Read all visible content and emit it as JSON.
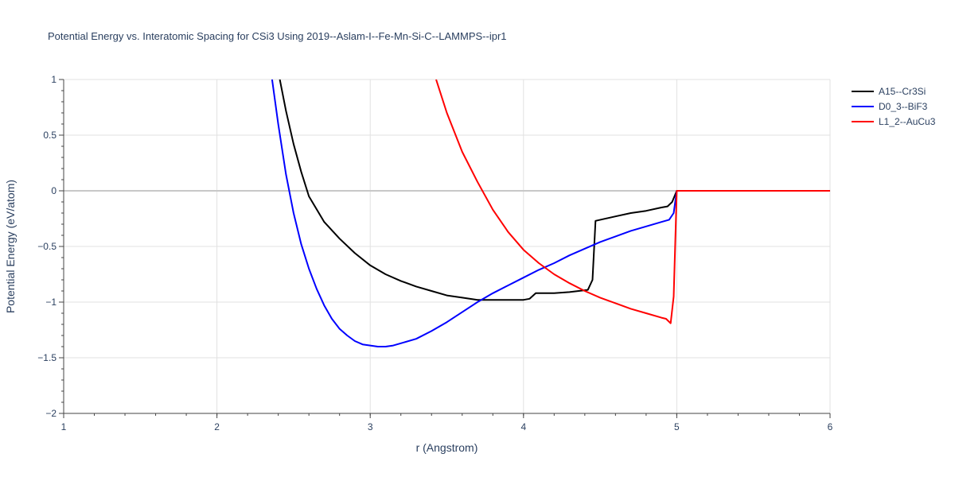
{
  "chart_data": {
    "type": "line",
    "title": "Potential Energy vs. Interatomic Spacing for CSi3 Using 2019--Aslam-I--Fe-Mn-Si-C--LAMMPS--ipr1",
    "xlabel": "r (Angstrom)",
    "ylabel": "Potential Energy (eV/atom)",
    "xlim": [
      1,
      6
    ],
    "ylim": [
      -2,
      1
    ],
    "xticks": [
      "1",
      "2",
      "3",
      "4",
      "5",
      "6"
    ],
    "yticks": [
      "1",
      "0.5",
      "0",
      "−0.5",
      "−1",
      "−1.5",
      "−2"
    ],
    "grid": true,
    "legend_position": "top-right",
    "series": [
      {
        "name": "A15--Cr3Si",
        "color": "#000000",
        "x": [
          2.41,
          2.45,
          2.5,
          2.55,
          2.6,
          2.7,
          2.8,
          2.9,
          3.0,
          3.1,
          3.2,
          3.3,
          3.4,
          3.5,
          3.6,
          3.7,
          3.8,
          3.9,
          4.0,
          4.04,
          4.08,
          4.2,
          4.3,
          4.42,
          4.45,
          4.47,
          4.6,
          4.7,
          4.8,
          4.9,
          4.94,
          4.97,
          5.0,
          5.2,
          5.4,
          5.6,
          5.8,
          6.0
        ],
        "y": [
          1.0,
          0.72,
          0.42,
          0.17,
          -0.05,
          -0.28,
          -0.43,
          -0.56,
          -0.67,
          -0.75,
          -0.81,
          -0.86,
          -0.9,
          -0.94,
          -0.96,
          -0.98,
          -0.98,
          -0.98,
          -0.98,
          -0.97,
          -0.92,
          -0.92,
          -0.91,
          -0.89,
          -0.8,
          -0.27,
          -0.23,
          -0.2,
          -0.18,
          -0.15,
          -0.14,
          -0.1,
          0.0,
          0.0,
          0.0,
          0.0,
          0.0,
          0.0
        ]
      },
      {
        "name": "D0_3--BiF3",
        "color": "#0000ff",
        "x": [
          2.36,
          2.4,
          2.45,
          2.5,
          2.55,
          2.6,
          2.65,
          2.7,
          2.75,
          2.8,
          2.85,
          2.9,
          2.95,
          3.0,
          3.05,
          3.1,
          3.15,
          3.2,
          3.3,
          3.4,
          3.5,
          3.6,
          3.7,
          3.8,
          3.9,
          4.0,
          4.1,
          4.2,
          4.3,
          4.4,
          4.5,
          4.6,
          4.7,
          4.8,
          4.9,
          4.95,
          4.98,
          5.0,
          5.2,
          5.4,
          5.6,
          5.8,
          6.0
        ],
        "y": [
          1.0,
          0.6,
          0.15,
          -0.2,
          -0.48,
          -0.7,
          -0.88,
          -1.03,
          -1.15,
          -1.24,
          -1.3,
          -1.35,
          -1.38,
          -1.39,
          -1.4,
          -1.4,
          -1.39,
          -1.37,
          -1.33,
          -1.26,
          -1.18,
          -1.09,
          -1.0,
          -0.92,
          -0.85,
          -0.78,
          -0.71,
          -0.65,
          -0.58,
          -0.52,
          -0.46,
          -0.41,
          -0.36,
          -0.32,
          -0.28,
          -0.26,
          -0.2,
          0.0,
          0.0,
          0.0,
          0.0,
          0.0,
          0.0
        ]
      },
      {
        "name": "L1_2--AuCu3",
        "color": "#ff0000",
        "x": [
          3.43,
          3.5,
          3.6,
          3.7,
          3.8,
          3.9,
          4.0,
          4.1,
          4.2,
          4.3,
          4.4,
          4.5,
          4.6,
          4.7,
          4.8,
          4.9,
          4.93,
          4.96,
          4.98,
          5.0,
          5.2,
          5.4,
          5.6,
          5.8,
          6.0
        ],
        "y": [
          1.0,
          0.7,
          0.35,
          0.08,
          -0.17,
          -0.37,
          -0.53,
          -0.65,
          -0.75,
          -0.83,
          -0.9,
          -0.96,
          -1.01,
          -1.06,
          -1.1,
          -1.14,
          -1.15,
          -1.19,
          -0.95,
          0.0,
          0.0,
          0.0,
          0.0,
          0.0,
          0.0
        ]
      }
    ]
  }
}
